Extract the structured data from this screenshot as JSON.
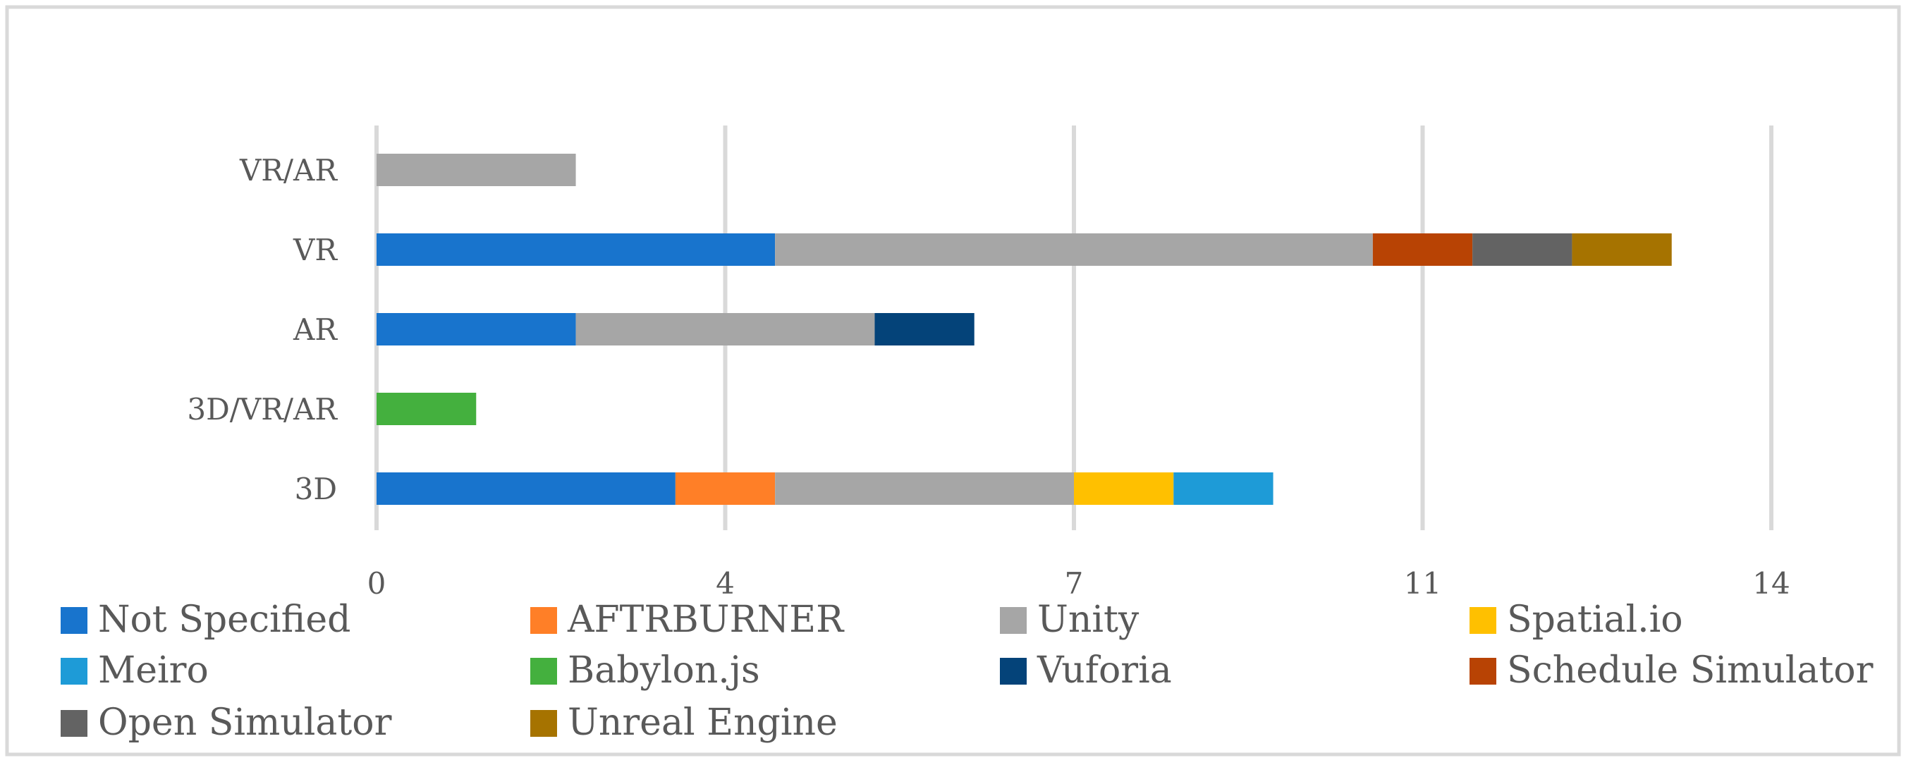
{
  "chart_data": {
    "type": "bar",
    "orientation": "horizontal",
    "stacked": true,
    "categories": [
      "VR/AR",
      "VR",
      "AR",
      "3D/VR/AR",
      "3D"
    ],
    "x_ticks": [
      0,
      4,
      7,
      11,
      14
    ],
    "xlim": [
      0,
      14
    ],
    "grid": "vertical",
    "legend_position": "bottom",
    "series": [
      {
        "name": "Not Specified",
        "color": "#1874CD",
        "values": [
          0,
          4,
          2,
          0,
          3
        ]
      },
      {
        "name": "AFTRBURNER",
        "color": "#FF7F27",
        "values": [
          0,
          0,
          0,
          0,
          1
        ]
      },
      {
        "name": "Unity",
        "color": "#A6A6A6",
        "values": [
          2,
          6,
          3,
          0,
          3
        ]
      },
      {
        "name": "Spatial.io",
        "color": "#FFC000",
        "values": [
          0,
          0,
          0,
          0,
          1
        ]
      },
      {
        "name": "Meiro",
        "color": "#1E9BD7",
        "values": [
          0,
          0,
          0,
          0,
          1
        ]
      },
      {
        "name": "Babylon.js",
        "color": "#44B03E",
        "values": [
          0,
          0,
          0,
          1,
          0
        ]
      },
      {
        "name": "Vuforia",
        "color": "#044379",
        "values": [
          0,
          0,
          1,
          0,
          0
        ]
      },
      {
        "name": "Schedule Simulator",
        "color": "#B84304",
        "values": [
          0,
          1,
          0,
          0,
          0
        ]
      },
      {
        "name": "Open Simulator",
        "color": "#636363",
        "values": [
          0,
          1,
          0,
          0,
          0
        ]
      },
      {
        "name": "Unreal Engine",
        "color": "#A67300",
        "values": [
          0,
          1,
          0,
          0,
          0
        ]
      }
    ]
  }
}
